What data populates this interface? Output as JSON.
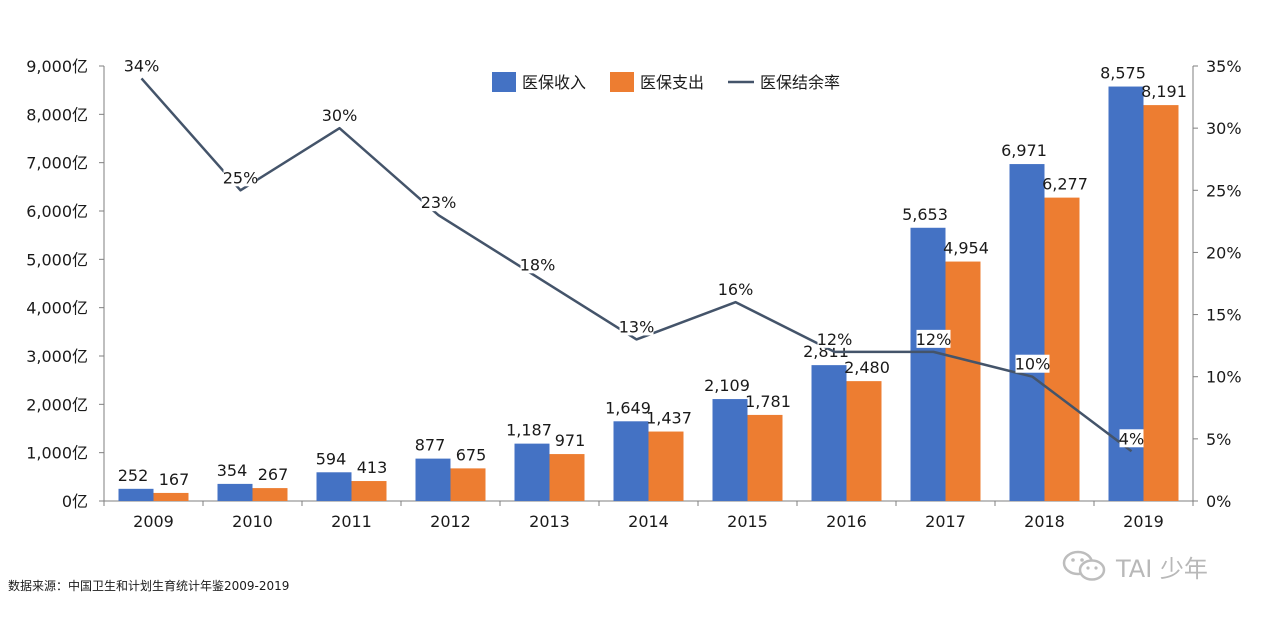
{
  "chart_data": {
    "type": "bar",
    "categories": [
      "2009",
      "2010",
      "2011",
      "2012",
      "2013",
      "2014",
      "2015",
      "2016",
      "2017",
      "2018",
      "2019"
    ],
    "series": [
      {
        "name": "医保收入",
        "color": "#4472C4",
        "values": [
          252,
          354,
          594,
          877,
          1187,
          1649,
          2109,
          2811,
          5653,
          6971,
          8575
        ]
      },
      {
        "name": "医保支出",
        "color": "#ED7D31",
        "values": [
          167,
          267,
          413,
          675,
          971,
          1437,
          1781,
          2480,
          4954,
          6277,
          8191
        ]
      }
    ],
    "line_series": {
      "name": "医保结余率",
      "color": "#44546A",
      "axis": "right",
      "values": [
        34,
        25,
        30,
        23,
        18,
        13,
        16,
        12,
        12,
        10,
        4
      ]
    },
    "bar_labels": [
      [
        "252",
        "354",
        "594",
        "877",
        "1,187",
        "1,649",
        "2,109",
        "2,811",
        "5,653",
        "6,971",
        "8,575"
      ],
      [
        "167",
        "267",
        "413",
        "675",
        "971",
        "1,437",
        "1,781",
        "2,480",
        "4,954",
        "6,277",
        "8,191"
      ]
    ],
    "line_labels": [
      "34%",
      "25%",
      "30%",
      "23%",
      "18%",
      "13%",
      "16%",
      "12%",
      "12%",
      "10%",
      "4%"
    ],
    "y_left": {
      "ticks": [
        0,
        1000,
        2000,
        3000,
        4000,
        5000,
        6000,
        7000,
        8000,
        9000
      ],
      "tick_labels": [
        "0亿",
        "1,000亿",
        "2,000亿",
        "3,000亿",
        "4,000亿",
        "5,000亿",
        "6,000亿",
        "7,000亿",
        "8,000亿",
        "9,000亿"
      ],
      "ylim": [
        0,
        9000
      ]
    },
    "y_right": {
      "ticks": [
        0,
        5,
        10,
        15,
        20,
        25,
        30,
        35
      ],
      "tick_labels": [
        "0%",
        "5%",
        "10%",
        "15%",
        "20%",
        "25%",
        "30%",
        "35%"
      ],
      "ylim": [
        0,
        35
      ]
    },
    "legend_position": "top-center",
    "grid": false
  },
  "footer": {
    "source": "数据来源：中国卫生和计划生育统计年鉴2009-2019",
    "watermark": "TAI 少年"
  }
}
